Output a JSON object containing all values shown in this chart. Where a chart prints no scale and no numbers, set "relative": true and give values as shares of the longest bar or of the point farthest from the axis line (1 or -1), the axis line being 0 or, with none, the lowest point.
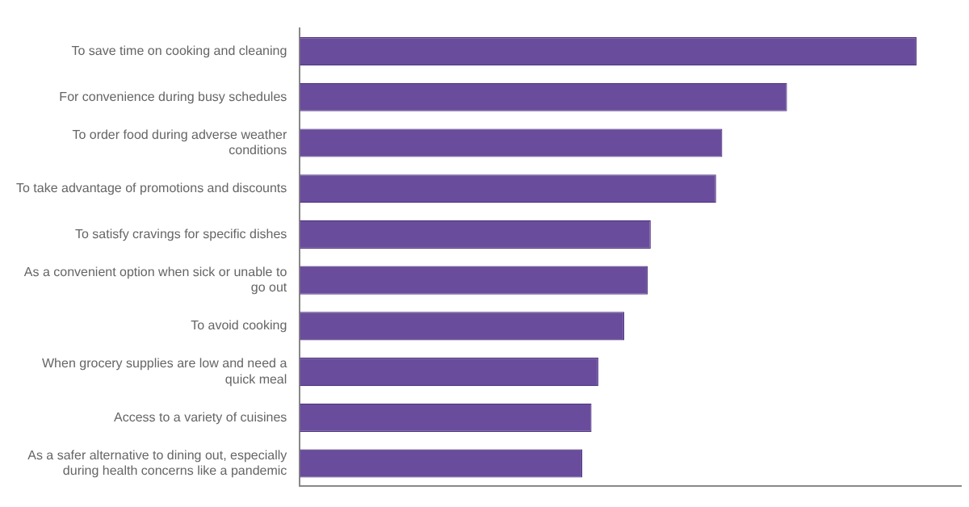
{
  "chart_data": {
    "type": "bar",
    "orientation": "horizontal",
    "relative": true,
    "grid": false,
    "legend": false,
    "categories": [
      "To save time on cooking and cleaning",
      "For convenience during busy schedules",
      "To order food during adverse weather conditions",
      "To take advantage of promotions and discounts",
      "To satisfy cravings for specific dishes",
      "As a convenient option when sick or unable to go out",
      "To avoid cooking",
      "When grocery supplies are low and need a quick meal",
      "Access to a variety of cuisines",
      "As a safer alternative to dining out, especially during health concerns like a pandemic"
    ],
    "values": [
      1,
      0.79,
      0.685,
      0.675,
      0.569,
      0.564,
      0.526,
      0.484,
      0.473,
      0.458
    ],
    "color": "#6a4c9c"
  }
}
